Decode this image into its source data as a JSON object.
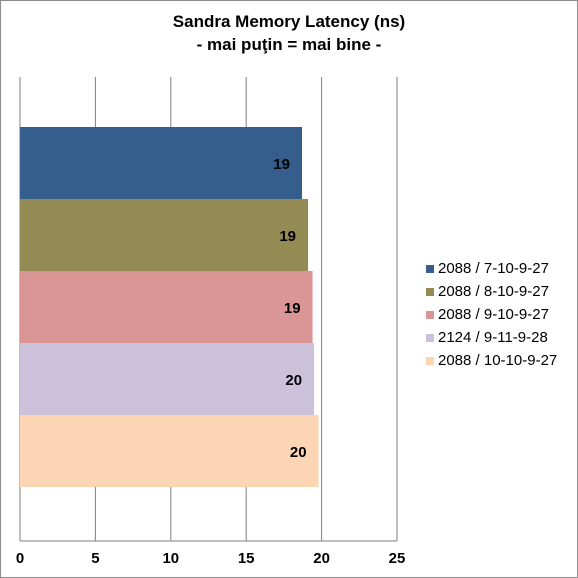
{
  "chart_data": {
    "type": "bar",
    "orientation": "horizontal",
    "title": "Sandra Memory Latency (ns)",
    "subtitle": "- mai puţin = mai bine -",
    "xlim": [
      0,
      25
    ],
    "xticks": [
      0,
      5,
      10,
      15,
      20,
      25
    ],
    "grid": true,
    "legend_position": "right",
    "series": [
      {
        "name": "2088 / 7-10-9-27",
        "value": 18.7,
        "label": "19",
        "color": "#355e8d"
      },
      {
        "name": "2088 / 8-10-9-27",
        "value": 19.1,
        "label": "19",
        "color": "#948a54"
      },
      {
        "name": "2088 / 9-10-9-27",
        "value": 19.4,
        "label": "19",
        "color": "#d99694"
      },
      {
        "name": "2124 / 9-11-9-28",
        "value": 19.5,
        "label": "20",
        "color": "#ccc1da"
      },
      {
        "name": "2088 / 10-10-9-27",
        "value": 19.8,
        "label": "20",
        "color": "#fcd5b5"
      }
    ]
  }
}
